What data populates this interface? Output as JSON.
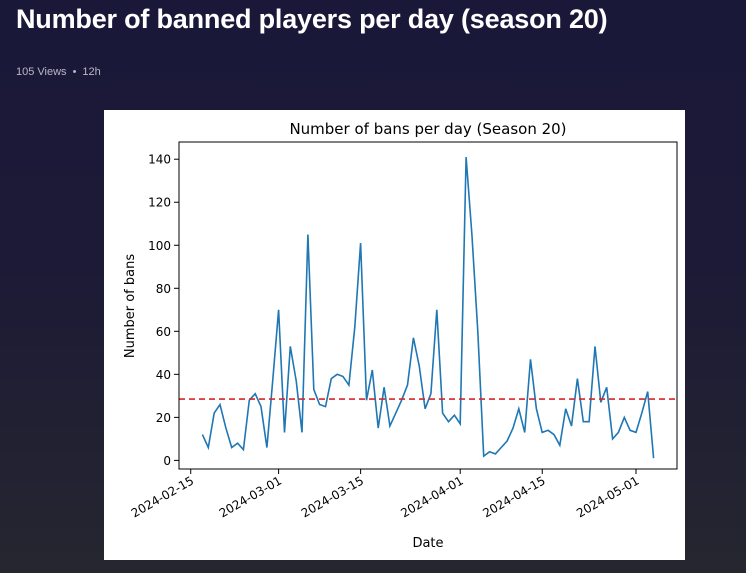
{
  "post": {
    "title": "Number of banned players per day (season 20)",
    "views": "105 Views",
    "separator": "•",
    "age": "12h"
  },
  "chart_data": {
    "type": "line",
    "title": "Number of bans per day (Season 20)",
    "xlabel": "Date",
    "ylabel": "Number of bans",
    "x_start": "2024-02-17",
    "x_step_days": 1,
    "xlim": [
      "2024-02-13",
      "2024-05-08"
    ],
    "ylim": [
      -4,
      148
    ],
    "x_ticks": [
      "2024-02-15",
      "2024-03-01",
      "2024-03-15",
      "2024-04-01",
      "2024-04-15",
      "2024-05-01"
    ],
    "y_ticks": [
      0,
      20,
      40,
      60,
      80,
      100,
      120,
      140
    ],
    "series": [
      {
        "color": "#1f77b4",
        "values": [
          12,
          6,
          22,
          26,
          15,
          6,
          8,
          5,
          28,
          31,
          25,
          6,
          37,
          70,
          13,
          53,
          37,
          13,
          105,
          33,
          26,
          25,
          38,
          40,
          39,
          35,
          62,
          101,
          28,
          42,
          15,
          34,
          16,
          22,
          28,
          35,
          57,
          44,
          24,
          31,
          70,
          22,
          18,
          21,
          17,
          141,
          105,
          60,
          2,
          4,
          3,
          6,
          9,
          15,
          24,
          13,
          47,
          24,
          13,
          14,
          12,
          7,
          24,
          16,
          38,
          18,
          18,
          53,
          27,
          34,
          10,
          13,
          20,
          14,
          13,
          22,
          32,
          1
        ]
      }
    ],
    "reference_line": {
      "value": 28.5,
      "style": "dashed",
      "color": "#d62728"
    },
    "grid": false,
    "legend": "none"
  }
}
